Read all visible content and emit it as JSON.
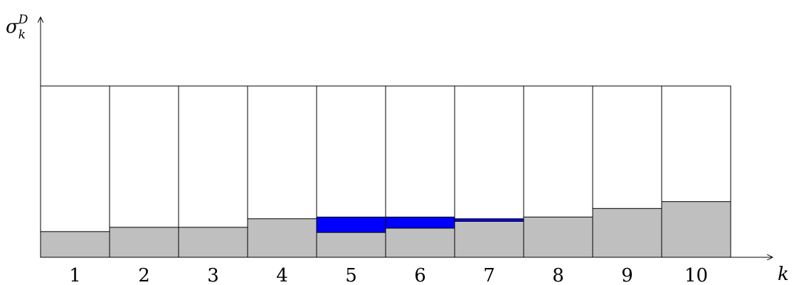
{
  "chart_data": {
    "type": "bar",
    "title": "",
    "xlabel": "k",
    "ylabel": {
      "base": "σ",
      "sub": "k",
      "sup": "D"
    },
    "categories": [
      "1",
      "2",
      "3",
      "4",
      "5",
      "6",
      "7",
      "8",
      "9",
      "10"
    ],
    "capacity": 1.0,
    "ylim": [
      0,
      1.0
    ],
    "grid": false,
    "legend": "none",
    "series": [
      {
        "values": [
          0.15,
          0.175,
          0.175,
          0.225,
          0.145,
          0.17,
          0.21,
          0.235,
          0.285,
          0.325
        ],
        "color": "#bfbfbf"
      },
      {
        "values": [
          0.0,
          0.0,
          0.0,
          0.0,
          0.09,
          0.065,
          0.015,
          0.0,
          0.0,
          0.0
        ],
        "color": "#0000ff"
      }
    ]
  }
}
